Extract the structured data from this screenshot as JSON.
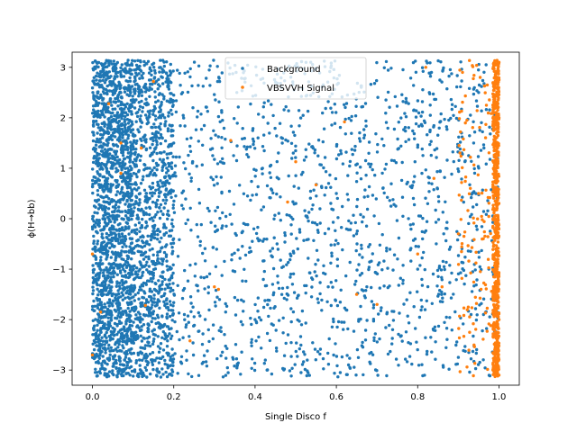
{
  "chart_data": {
    "type": "scatter",
    "xlabel": "Single Disco f",
    "ylabel": "ϕ(H→bb)",
    "xlim": [
      -0.05,
      1.05
    ],
    "ylim": [
      -3.3,
      3.3
    ],
    "xticks": [
      0.0,
      0.2,
      0.4,
      0.6,
      0.8,
      1.0
    ],
    "xtick_labels": [
      "0.0",
      "0.2",
      "0.4",
      "0.6",
      "0.8",
      "1.0"
    ],
    "yticks": [
      -3,
      -2,
      -1,
      0,
      1,
      2,
      3
    ],
    "ytick_labels": [
      "−3",
      "−2",
      "−1",
      "0",
      "1",
      "2",
      "3"
    ],
    "grid": false,
    "legend_position": "upper center",
    "series": [
      {
        "name": "Background",
        "color": "#1f77b4",
        "distribution": "dense near x=0 (0.0–0.1), thinning toward x=1.0; phi uniform in [-3.14, 3.14]",
        "sample_points": [
          [
            0.01,
            3.1
          ],
          [
            0.03,
            -3.1
          ],
          [
            0.05,
            0.0
          ],
          [
            0.2,
            1.5
          ],
          [
            0.4,
            -2.0
          ],
          [
            0.6,
            0.5
          ],
          [
            0.8,
            -1.0
          ],
          [
            0.95,
            2.5
          ]
        ]
      },
      {
        "name": "VBSVVH Signal",
        "color": "#ff7f0e",
        "distribution": "concentrated at x≈0.98–1.0 across full phi range, with sparse points elsewhere",
        "sample_points": [
          [
            0.0,
            -0.7
          ],
          [
            0.0,
            -2.7
          ],
          [
            0.02,
            -1.85
          ],
          [
            0.04,
            2.28
          ],
          [
            0.07,
            1.5
          ],
          [
            0.07,
            0.9
          ],
          [
            0.12,
            1.4
          ],
          [
            0.13,
            -1.72
          ],
          [
            0.15,
            2.72
          ],
          [
            0.24,
            -2.42
          ],
          [
            0.3,
            -1.35
          ],
          [
            0.31,
            -1.4
          ],
          [
            0.34,
            1.55
          ],
          [
            0.48,
            0.33
          ],
          [
            0.5,
            1.13
          ],
          [
            0.55,
            0.67
          ],
          [
            0.62,
            1.92
          ],
          [
            0.65,
            -1.5
          ],
          [
            0.7,
            -1.7
          ],
          [
            0.8,
            -0.7
          ],
          [
            0.82,
            3.0
          ],
          [
            0.84,
            0.8
          ],
          [
            0.86,
            -1.35
          ],
          [
            0.9,
            -0.3
          ],
          [
            0.95,
            0.5
          ],
          [
            0.99,
            0.0
          ],
          [
            1.0,
            2.0
          ],
          [
            1.0,
            -2.0
          ],
          [
            1.0,
            3.1
          ],
          [
            1.0,
            -3.1
          ]
        ]
      }
    ]
  }
}
